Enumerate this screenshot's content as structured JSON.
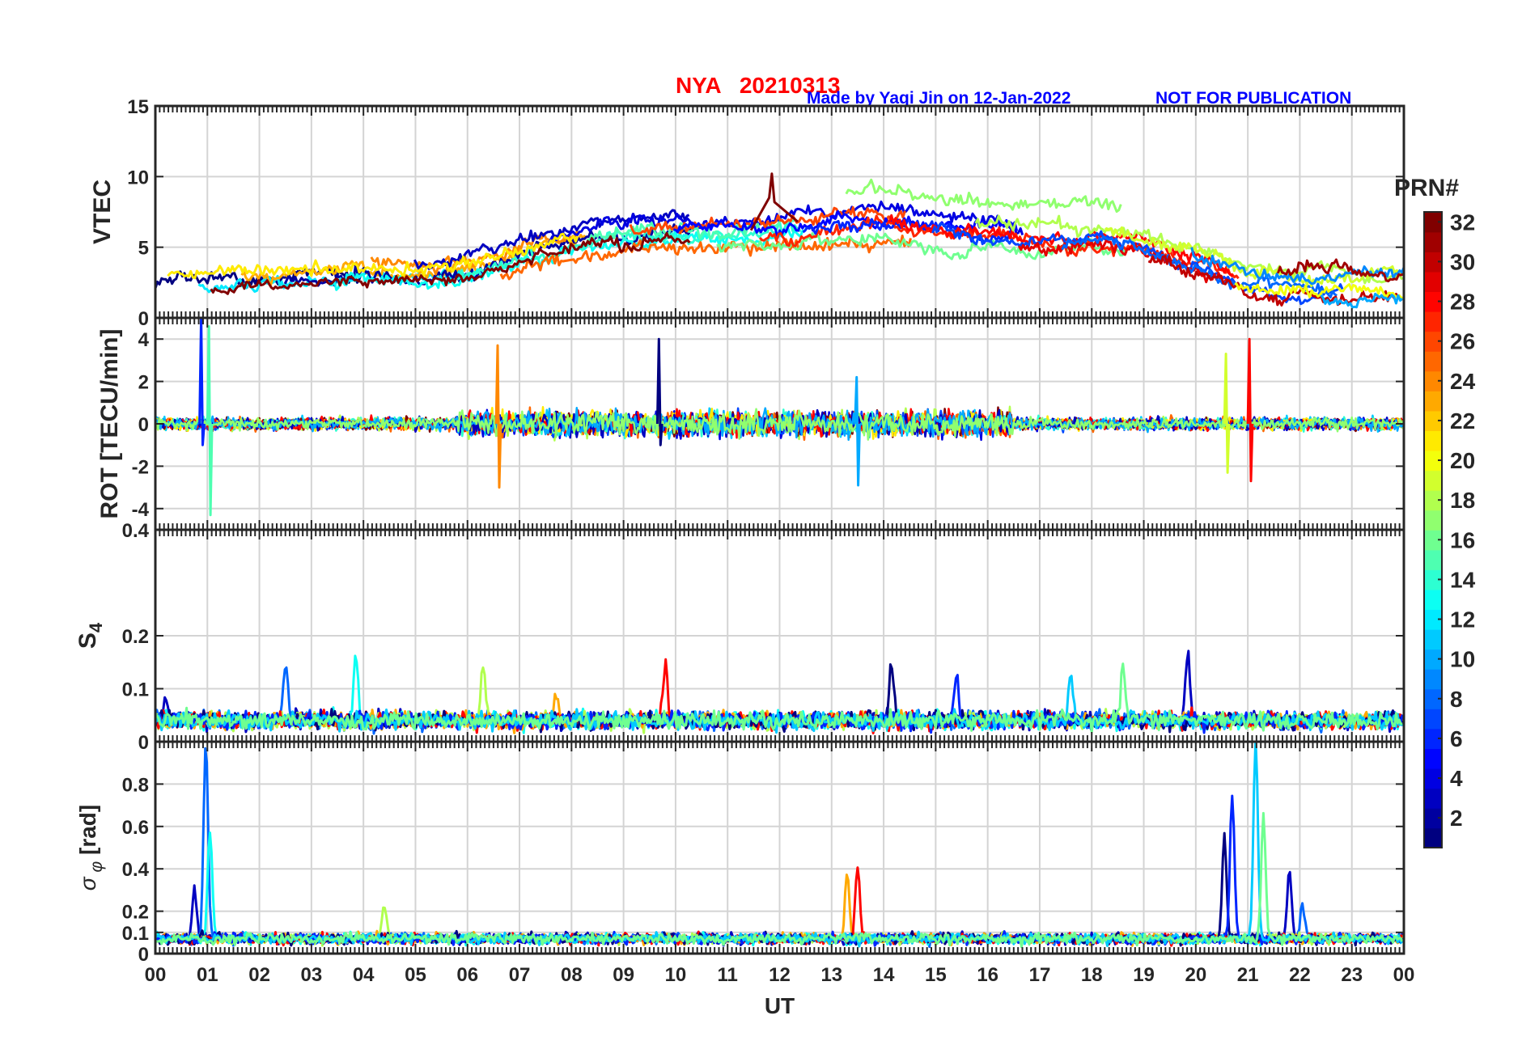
{
  "header": {
    "title": "NYA   20210313",
    "made_by": "Made by Yaqi Jin on 12-Jan-2022",
    "notice": "NOT FOR PUBLICATION"
  },
  "colorbar": {
    "label": "PRN#",
    "colormap": "jet",
    "range": [
      1,
      32
    ],
    "ticks": [
      "2",
      "4",
      "6",
      "8",
      "10",
      "12",
      "14",
      "16",
      "18",
      "20",
      "22",
      "24",
      "26",
      "28",
      "30",
      "32"
    ]
  },
  "chart_data": [
    {
      "type": "line",
      "panel": "VTEC",
      "ylabel": "VTEC",
      "xlabel": "",
      "xlim": [
        0,
        24
      ],
      "ylim": [
        0,
        15
      ],
      "yticks": [
        "0",
        "5",
        "10",
        "15"
      ],
      "grid": true,
      "series_envelope": {
        "hours": [
          0,
          1,
          2,
          3,
          4,
          5,
          6,
          7,
          8,
          9,
          10,
          11,
          12,
          13,
          14,
          15,
          16,
          17,
          18,
          19,
          20,
          21,
          22,
          23,
          24
        ],
        "typical_vtec": [
          2.5,
          2.4,
          2.6,
          2.9,
          3.1,
          2.8,
          3.2,
          4.3,
          5.2,
          5.8,
          6.2,
          6.3,
          6.5,
          6.9,
          7.0,
          6.6,
          6.2,
          5.9,
          6.1,
          5.4,
          4.2,
          2.8,
          2.6,
          2.7,
          2.6
        ],
        "peak": {
          "hour": 11.85,
          "vtec": 10.2,
          "prn": 32
        }
      }
    },
    {
      "type": "line",
      "panel": "ROT",
      "ylabel": "ROT [TECU/min]",
      "xlabel": "",
      "xlim": [
        0,
        24
      ],
      "ylim": [
        -5,
        5
      ],
      "yticks": [
        "-4",
        "-2",
        "0",
        "2",
        "4"
      ],
      "grid": true,
      "spikes": [
        {
          "hour": 0.9,
          "max": 5.0,
          "min": -1.0
        },
        {
          "hour": 1.05,
          "max": 4.6,
          "min": -4.3
        },
        {
          "hour": 6.6,
          "max": 3.7,
          "min": -3.0
        },
        {
          "hour": 9.7,
          "max": 4.0,
          "min": -1.0
        },
        {
          "hour": 13.5,
          "max": 2.2,
          "min": -2.9
        },
        {
          "hour": 20.6,
          "max": 3.3,
          "min": -2.3
        },
        {
          "hour": 21.05,
          "max": 4.0,
          "min": -2.7
        }
      ]
    },
    {
      "type": "line",
      "panel": "S4",
      "ylabel": "S4",
      "xlabel": "",
      "xlim": [
        0,
        24
      ],
      "ylim": [
        0,
        0.4
      ],
      "yticks": [
        "0",
        "0.1",
        "0.2",
        "0.4"
      ],
      "grid": true,
      "baseline": 0.04,
      "peaks": [
        {
          "hour": 0.2,
          "value": 0.085
        },
        {
          "hour": 2.5,
          "value": 0.14
        },
        {
          "hour": 3.85,
          "value": 0.16
        },
        {
          "hour": 6.3,
          "value": 0.15
        },
        {
          "hour": 7.7,
          "value": 0.09
        },
        {
          "hour": 9.8,
          "value": 0.15
        },
        {
          "hour": 14.15,
          "value": 0.15
        },
        {
          "hour": 15.4,
          "value": 0.115
        },
        {
          "hour": 17.6,
          "value": 0.13
        },
        {
          "hour": 18.6,
          "value": 0.155
        },
        {
          "hour": 19.85,
          "value": 0.175
        }
      ]
    },
    {
      "type": "line",
      "panel": "sigma_phi",
      "ylabel": "σ",
      "ylabel_subscript": "φ",
      "ylabel_unit": " [rad]",
      "xlabel": "UT",
      "xlim": [
        0,
        24
      ],
      "ylim": [
        0,
        1.0
      ],
      "yticks": [
        "0",
        "0.1",
        "0.2",
        "0.4",
        "0.6",
        "0.8"
      ],
      "xticks": [
        "00",
        "01",
        "02",
        "03",
        "04",
        "05",
        "06",
        "07",
        "08",
        "09",
        "10",
        "11",
        "12",
        "13",
        "14",
        "15",
        "16",
        "17",
        "18",
        "19",
        "20",
        "21",
        "22",
        "23",
        "00"
      ],
      "grid": true,
      "baseline": 0.07,
      "peaks": [
        {
          "hour": 0.75,
          "value": 0.3
        },
        {
          "hour": 0.97,
          "value": 1.0
        },
        {
          "hour": 1.05,
          "value": 0.58
        },
        {
          "hour": 4.4,
          "value": 0.23
        },
        {
          "hour": 13.3,
          "value": 0.38
        },
        {
          "hour": 13.5,
          "value": 0.41
        },
        {
          "hour": 20.55,
          "value": 0.55
        },
        {
          "hour": 20.7,
          "value": 0.72
        },
        {
          "hour": 21.15,
          "value": 1.0
        },
        {
          "hour": 21.3,
          "value": 0.64
        },
        {
          "hour": 21.8,
          "value": 0.39
        },
        {
          "hour": 22.05,
          "value": 0.24
        }
      ]
    }
  ]
}
